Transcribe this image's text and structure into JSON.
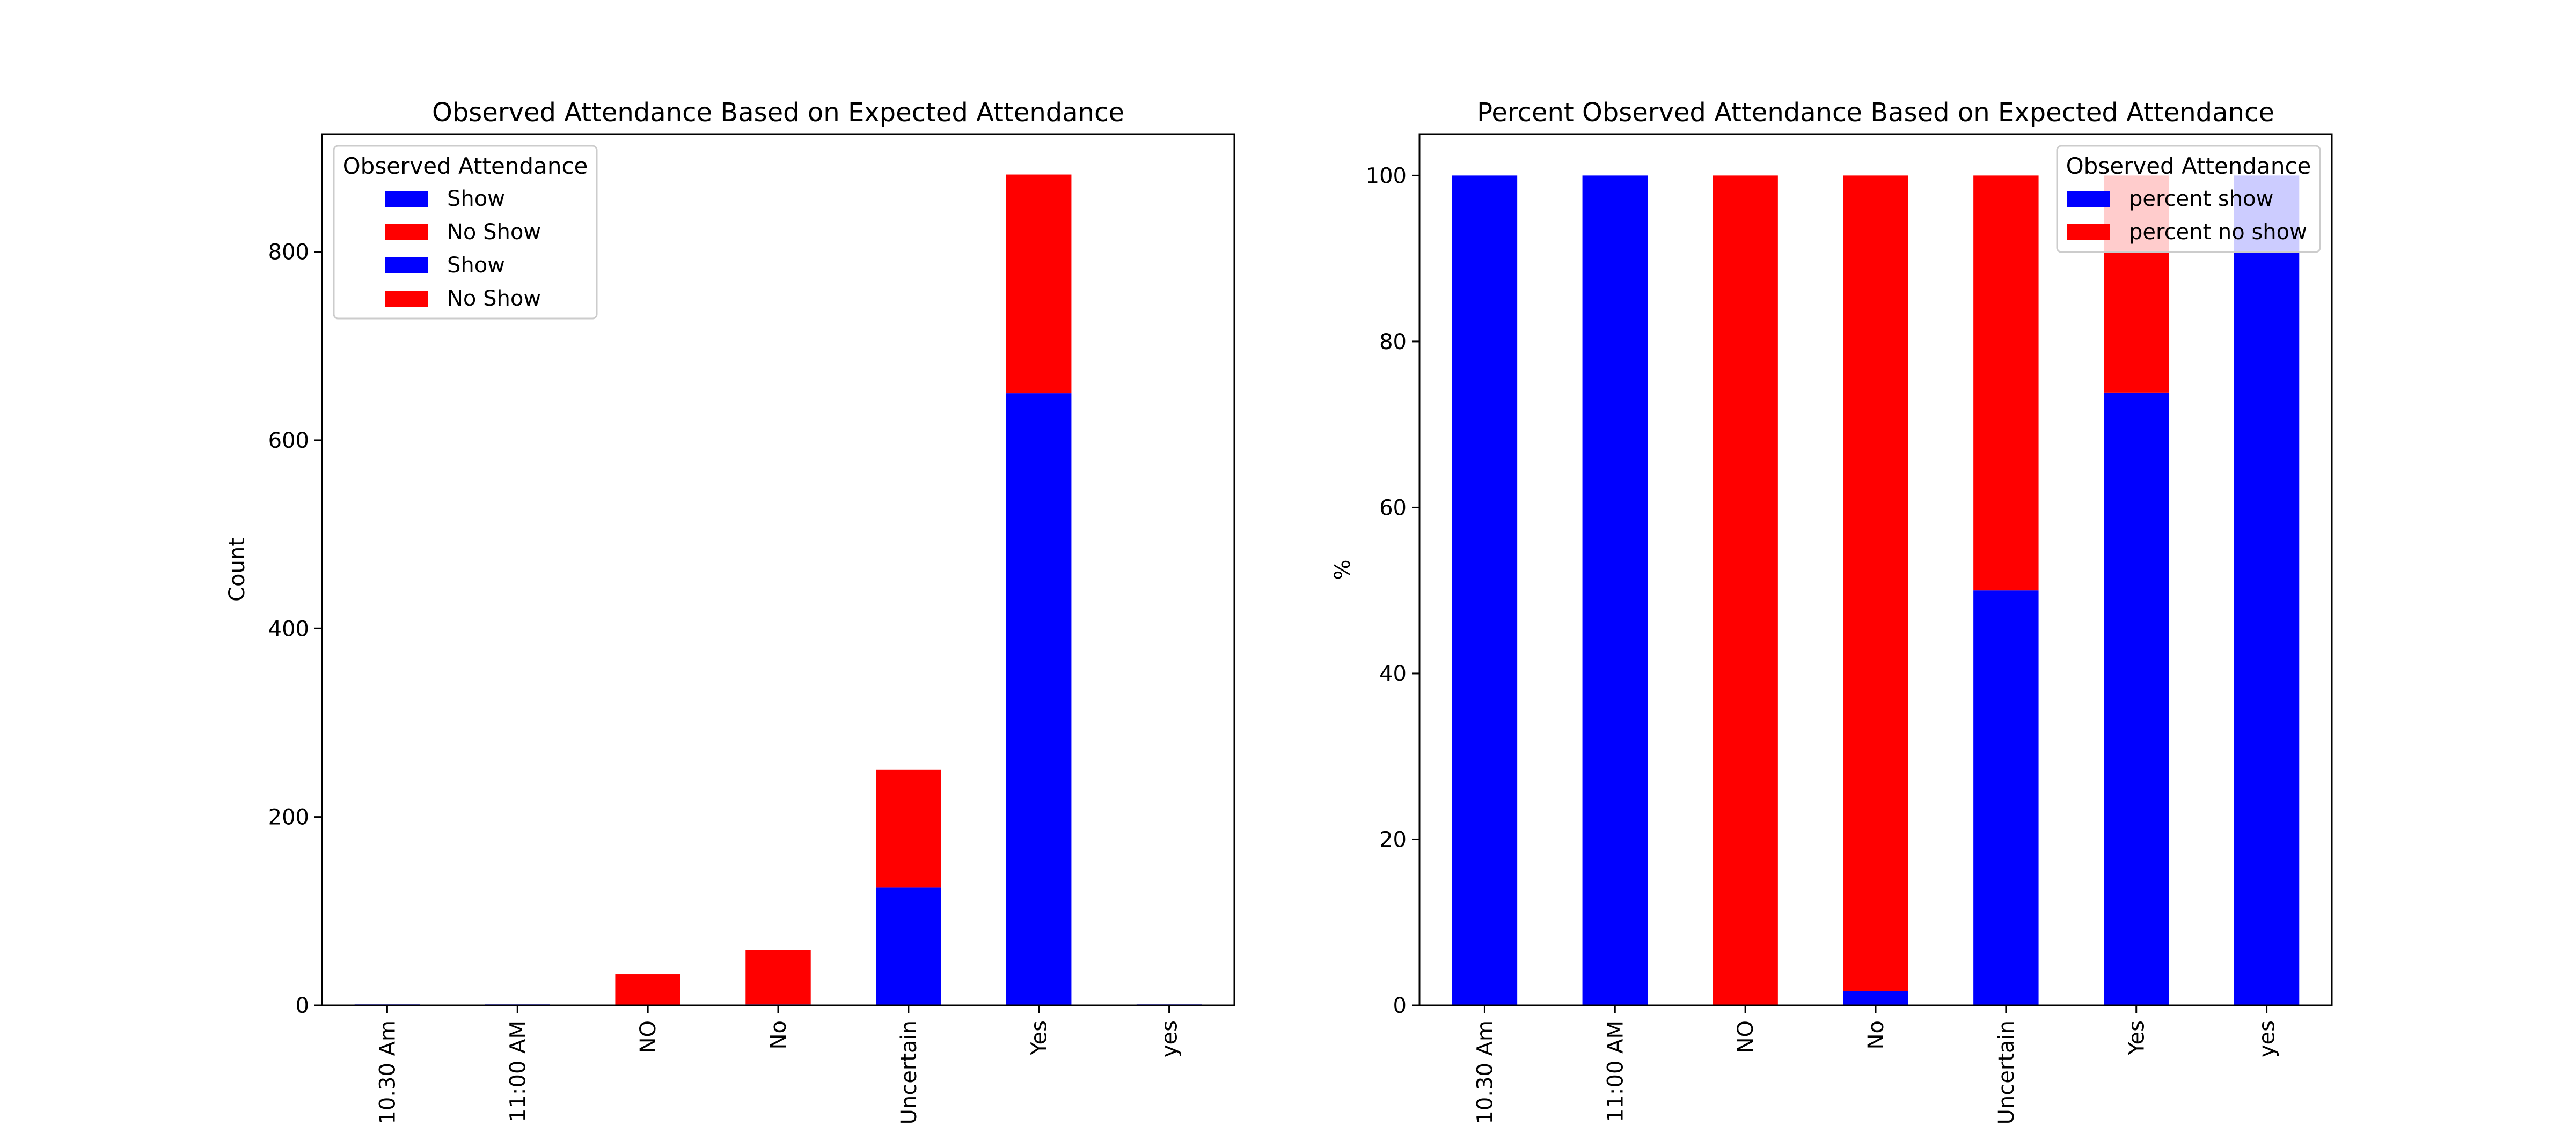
{
  "chart_data": [
    {
      "type": "bar",
      "stacked": true,
      "title": "Observed Attendance Based on Expected Attendance",
      "xlabel": "",
      "ylabel": "Count",
      "categories": [
        "10.30 Am",
        "11:00 AM",
        "NO",
        "No",
        "Uncertain",
        "Yes",
        "yes"
      ],
      "ylim": [
        0,
        925
      ],
      "yticks": [
        0,
        200,
        400,
        600,
        800
      ],
      "series": [
        {
          "name": "Show",
          "color": "#0000ff",
          "values": [
            1,
            1,
            0,
            1,
            125,
            650,
            1
          ]
        },
        {
          "name": "No Show",
          "color": "#ff0000",
          "values": [
            0,
            0,
            33,
            58,
            125,
            232,
            0
          ]
        }
      ],
      "legend": {
        "title": "Observed Attendance",
        "placement": "upper-left",
        "entries": [
          {
            "label": "Show",
            "color": "#0000ff"
          },
          {
            "label": "No Show",
            "color": "#ff0000"
          },
          {
            "label": "Show",
            "color": "#0000ff"
          },
          {
            "label": "No Show",
            "color": "#ff0000"
          }
        ]
      },
      "grid": false
    },
    {
      "type": "bar",
      "stacked": true,
      "title": "Percent Observed Attendance Based on Expected Attendance",
      "xlabel": "",
      "ylabel": "%",
      "categories": [
        "10.30 Am",
        "11:00 AM",
        "NO",
        "No",
        "Uncertain",
        "Yes",
        "yes"
      ],
      "ylim": [
        0,
        105
      ],
      "yticks": [
        0,
        20,
        40,
        60,
        80,
        100
      ],
      "series": [
        {
          "name": "percent show",
          "color": "#0000ff",
          "values": [
            100,
            100,
            0,
            1.7,
            50,
            73.8,
            100
          ]
        },
        {
          "name": "percent no show",
          "color": "#ff0000",
          "values": [
            0,
            0,
            100,
            98.3,
            50,
            26.2,
            0
          ]
        }
      ],
      "legend": {
        "title": "Observed Attendance",
        "placement": "upper-right",
        "entries": [
          {
            "label": "percent show",
            "color": "#0000ff"
          },
          {
            "label": "percent no show",
            "color": "#ff0000"
          }
        ]
      },
      "grid": false
    }
  ]
}
